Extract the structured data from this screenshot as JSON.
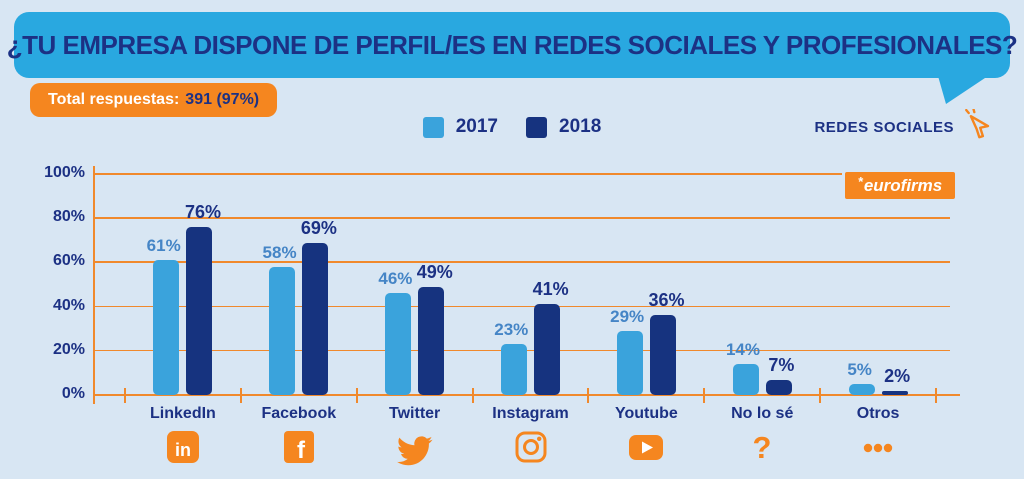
{
  "title": "¿TU EMPRESA DISPONE DE PERFIL/ES EN REDES SOCIALES Y PROFESIONALES?",
  "badge": {
    "label": "Total respuestas:",
    "value": "391 (97%)"
  },
  "legend": [
    {
      "label": "2017",
      "color": "#3AA3DC"
    },
    {
      "label": "2018",
      "color": "#16337F"
    }
  ],
  "redes_sociales_label": "REDES SOCIALES",
  "logo": {
    "prefix": "*",
    "text": "eurofirms"
  },
  "colors": {
    "background": "#D8E6F3",
    "bubble_blue": "#29A8E0",
    "navy_text": "#1C3184",
    "accent_orange": "#F5861F",
    "grid_orange": "#F0892C",
    "bar_2017": "#3AA3DC",
    "bar_2018": "#16337F",
    "label_2017": "#4585C6",
    "label_2018": "#1C3184"
  },
  "chart_data": {
    "type": "bar",
    "categories": [
      "LinkedIn",
      "Facebook",
      "Twitter",
      "Instagram",
      "Youtube",
      "No lo sé",
      "Otros"
    ],
    "category_icons": [
      "linkedin-icon",
      "facebook-icon",
      "twitter-icon",
      "instagram-icon",
      "youtube-icon",
      "question-icon",
      "dots-icon"
    ],
    "series": [
      {
        "name": "2017",
        "color": "#3AA3DC",
        "label_color": "#4585C6",
        "values": [
          61,
          58,
          46,
          23,
          29,
          14,
          5
        ]
      },
      {
        "name": "2018",
        "color": "#16337F",
        "label_color": "#1C3184",
        "values": [
          76,
          69,
          49,
          41,
          36,
          7,
          2
        ]
      }
    ],
    "value_suffix": "%",
    "yticks": [
      "100%",
      "80%",
      "60%",
      "40%",
      "20%",
      "0%"
    ],
    "ylim": [
      0,
      100
    ],
    "grid": true,
    "legend_position": "top-center"
  }
}
